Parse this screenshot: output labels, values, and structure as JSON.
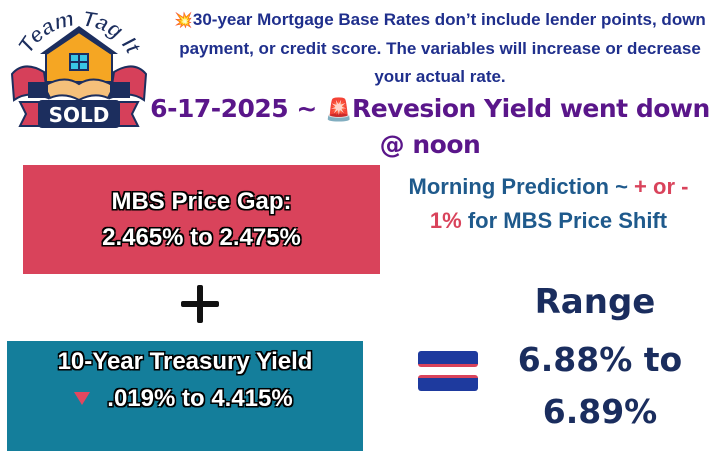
{
  "logo": {
    "text_top": "Team Tag It",
    "text_bottom": "SOLD",
    "colors": {
      "navy": "#1c2e5e",
      "red": "#d6405a",
      "orange": "#f5a623",
      "cyan": "#39c6e4"
    }
  },
  "disclaimer": {
    "icon": "burst-icon",
    "text": "30-year Mortgage Base Rates don’t include lender points, down payment, or credit score. The variables will increase or decrease your actual rate."
  },
  "update": {
    "date": "6-17-2025 ~ ",
    "icon": "siren-icon",
    "message": "Revesion Yield went down @ noon"
  },
  "mbs": {
    "label": "MBS Price Gap:",
    "value": "2.465% to 2.475%",
    "color": "#d9435b"
  },
  "prediction": {
    "prefix": "Morning Prediction ~ ",
    "highlight1": "+ or -",
    "highlight2": "1%",
    "suffix": " for MBS Price Shift"
  },
  "treasury": {
    "label": "10-Year Treasury Yield",
    "icon": "down-triangle-icon",
    "value": ".019% to 4.415%",
    "color": "#147e9b"
  },
  "range": {
    "title": "Range",
    "line1": "6.88% to",
    "line2": "6.89%"
  }
}
